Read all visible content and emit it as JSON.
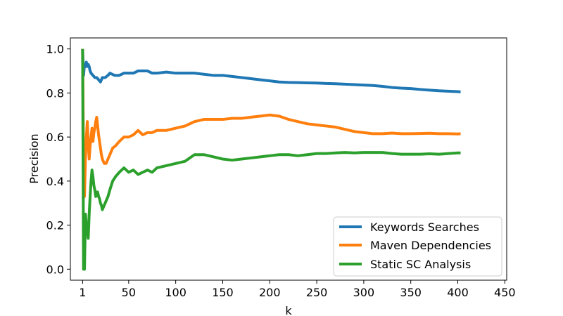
{
  "chart_data": {
    "type": "line",
    "xlabel": "k",
    "ylabel": "Precision",
    "xlim": [
      -12,
      452
    ],
    "ylim": [
      -0.05,
      1.05
    ],
    "xticks": [
      1,
      50,
      100,
      150,
      200,
      250,
      300,
      350,
      400,
      450
    ],
    "yticks": [
      0.0,
      0.2,
      0.4,
      0.6,
      0.8,
      1.0
    ],
    "xtick_labels": [
      "1",
      "50",
      "100",
      "150",
      "200",
      "250",
      "300",
      "350",
      "400",
      "450"
    ],
    "ytick_labels": [
      "0.0",
      "0.2",
      "0.4",
      "0.6",
      "0.8",
      "1.0"
    ],
    "grid": false,
    "legend_position": "lower-right",
    "series": [
      {
        "name": "Keywords Searches",
        "color": "#1f77b4",
        "x": [
          1,
          2,
          3,
          4,
          5,
          6,
          7,
          8,
          9,
          10,
          12,
          14,
          16,
          18,
          20,
          22,
          25,
          28,
          30,
          35,
          40,
          45,
          50,
          55,
          60,
          65,
          70,
          75,
          80,
          90,
          100,
          110,
          120,
          130,
          140,
          150,
          160,
          170,
          180,
          190,
          200,
          210,
          220,
          230,
          240,
          250,
          260,
          270,
          280,
          290,
          300,
          310,
          320,
          330,
          340,
          350,
          360,
          370,
          380,
          390,
          400,
          403
        ],
        "y": [
          1.0,
          0.88,
          0.93,
          0.92,
          0.94,
          0.92,
          0.93,
          0.92,
          0.9,
          0.89,
          0.88,
          0.87,
          0.87,
          0.86,
          0.85,
          0.87,
          0.87,
          0.88,
          0.89,
          0.88,
          0.88,
          0.89,
          0.89,
          0.89,
          0.9,
          0.9,
          0.9,
          0.89,
          0.89,
          0.895,
          0.89,
          0.89,
          0.89,
          0.885,
          0.88,
          0.88,
          0.875,
          0.87,
          0.865,
          0.86,
          0.855,
          0.85,
          0.848,
          0.847,
          0.846,
          0.845,
          0.843,
          0.842,
          0.84,
          0.838,
          0.836,
          0.834,
          0.83,
          0.825,
          0.822,
          0.82,
          0.816,
          0.813,
          0.81,
          0.808,
          0.806,
          0.805
        ]
      },
      {
        "name": "Maven Dependencies",
        "color": "#ff7f0e",
        "x": [
          1,
          2,
          3,
          4,
          5,
          6,
          7,
          8,
          9,
          10,
          11,
          12,
          13,
          14,
          15,
          16,
          17,
          18,
          19,
          20,
          21,
          22,
          24,
          26,
          28,
          30,
          33,
          36,
          40,
          45,
          50,
          55,
          60,
          65,
          70,
          75,
          80,
          90,
          100,
          110,
          120,
          130,
          140,
          150,
          160,
          170,
          180,
          190,
          200,
          210,
          220,
          230,
          240,
          250,
          260,
          270,
          280,
          290,
          300,
          310,
          320,
          330,
          340,
          350,
          360,
          370,
          380,
          390,
          400,
          403
        ],
        "y": [
          1.0,
          0.5,
          0.33,
          0.5,
          0.6,
          0.67,
          0.57,
          0.5,
          0.56,
          0.6,
          0.64,
          0.58,
          0.62,
          0.64,
          0.67,
          0.69,
          0.65,
          0.61,
          0.58,
          0.55,
          0.52,
          0.5,
          0.48,
          0.48,
          0.5,
          0.52,
          0.55,
          0.56,
          0.58,
          0.6,
          0.6,
          0.61,
          0.63,
          0.61,
          0.62,
          0.62,
          0.63,
          0.63,
          0.64,
          0.65,
          0.67,
          0.68,
          0.68,
          0.68,
          0.685,
          0.685,
          0.69,
          0.695,
          0.7,
          0.695,
          0.68,
          0.67,
          0.66,
          0.655,
          0.65,
          0.645,
          0.635,
          0.625,
          0.62,
          0.615,
          0.615,
          0.618,
          0.615,
          0.615,
          0.616,
          0.617,
          0.615,
          0.615,
          0.614,
          0.615
        ]
      },
      {
        "name": "Static SC Analysis",
        "color": "#2ca02c",
        "x": [
          1,
          2,
          3,
          4,
          5,
          6,
          7,
          8,
          9,
          10,
          11,
          12,
          13,
          14,
          15,
          16,
          17,
          18,
          19,
          20,
          21,
          22,
          24,
          26,
          28,
          30,
          33,
          36,
          40,
          45,
          50,
          55,
          60,
          65,
          70,
          75,
          80,
          90,
          100,
          110,
          120,
          130,
          140,
          150,
          160,
          170,
          180,
          190,
          200,
          210,
          220,
          230,
          240,
          250,
          260,
          270,
          280,
          290,
          300,
          310,
          320,
          330,
          340,
          350,
          360,
          370,
          380,
          390,
          400,
          403
        ],
        "y": [
          1.0,
          0.0,
          0.0,
          0.25,
          0.2,
          0.17,
          0.14,
          0.25,
          0.33,
          0.4,
          0.45,
          0.42,
          0.38,
          0.36,
          0.33,
          0.35,
          0.35,
          0.33,
          0.32,
          0.3,
          0.29,
          0.27,
          0.29,
          0.31,
          0.33,
          0.36,
          0.4,
          0.42,
          0.44,
          0.46,
          0.44,
          0.45,
          0.43,
          0.44,
          0.45,
          0.44,
          0.46,
          0.47,
          0.48,
          0.49,
          0.52,
          0.52,
          0.51,
          0.5,
          0.495,
          0.5,
          0.505,
          0.51,
          0.515,
          0.52,
          0.52,
          0.515,
          0.52,
          0.525,
          0.525,
          0.528,
          0.53,
          0.528,
          0.53,
          0.53,
          0.53,
          0.525,
          0.522,
          0.522,
          0.522,
          0.524,
          0.522,
          0.525,
          0.528,
          0.528
        ]
      }
    ]
  }
}
